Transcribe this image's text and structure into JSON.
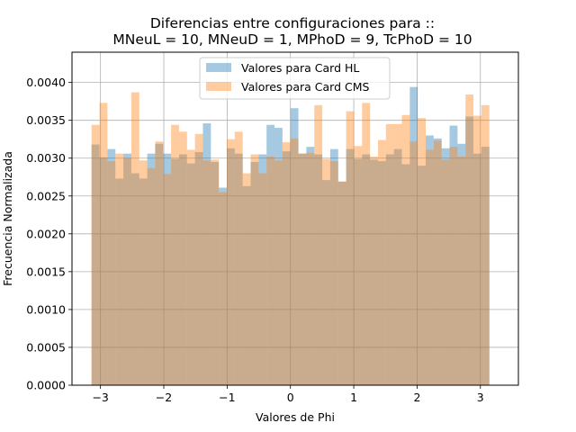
{
  "chart_data": {
    "type": "bar",
    "title_lines": [
      "Diferencias entre configuraciones para ::",
      "MNeuL = 10, MNeuD = 1, MPhoD = 9, TcPhoD = 10"
    ],
    "xlabel": "Valores de Phi",
    "ylabel": "Frecuencia Normalizada",
    "xlim": [
      -3.45,
      3.6
    ],
    "ylim": [
      0,
      0.0044
    ],
    "xticks": [
      -3,
      -2,
      -1,
      0,
      1,
      2,
      3
    ],
    "xtick_labels": [
      "−3",
      "−2",
      "−1",
      "0",
      "1",
      "2",
      "3"
    ],
    "yticks": [
      0,
      0.0005,
      0.001,
      0.0015,
      0.002,
      0.0025,
      0.003,
      0.0035,
      0.004
    ],
    "ytick_labels": [
      "0.0000",
      "0.0005",
      "0.0010",
      "0.0015",
      "0.0020",
      "0.0025",
      "0.0030",
      "0.0035",
      "0.0040"
    ],
    "grid": true,
    "legend_position": "top-center",
    "bin_start": -3.14159,
    "bin_end": 3.14159,
    "num_bins": 50,
    "series": [
      {
        "name": "Valores para Card HL",
        "color": "#1f77b4",
        "alpha": 0.4,
        "values": [
          0.00318,
          0.00301,
          0.00312,
          0.00273,
          0.00306,
          0.0028,
          0.00273,
          0.00306,
          0.00319,
          0.00306,
          0.00299,
          0.00305,
          0.00293,
          0.00308,
          0.00346,
          0.00295,
          0.00261,
          0.00313,
          0.00306,
          0.00263,
          0.00295,
          0.00305,
          0.00344,
          0.0034,
          0.00309,
          0.00366,
          0.00306,
          0.00315,
          0.00305,
          0.00271,
          0.00312,
          0.00269,
          0.00312,
          0.00299,
          0.00305,
          0.00298,
          0.00296,
          0.00305,
          0.00312,
          0.00292,
          0.00394,
          0.0029,
          0.0033,
          0.00326,
          0.00313,
          0.00343,
          0.00319,
          0.00355,
          0.00306,
          0.00315
        ]
      },
      {
        "name": "Valores para Card CMS",
        "color": "#ff7f0e",
        "alpha": 0.4,
        "values": [
          0.00344,
          0.00373,
          0.00296,
          0.00306,
          0.003,
          0.00387,
          0.00297,
          0.00287,
          0.00322,
          0.00279,
          0.00344,
          0.00335,
          0.00311,
          0.00332,
          0.00297,
          0.00298,
          0.00255,
          0.00325,
          0.00335,
          0.0028,
          0.00305,
          0.0028,
          0.00302,
          0.00297,
          0.00321,
          0.00326,
          0.00306,
          0.00307,
          0.0037,
          0.00299,
          0.00296,
          0.00269,
          0.00362,
          0.00316,
          0.00373,
          0.00302,
          0.00324,
          0.00345,
          0.00345,
          0.00357,
          0.00322,
          0.00353,
          0.00311,
          0.00323,
          0.00298,
          0.00315,
          0.00302,
          0.00384,
          0.00356,
          0.0037
        ]
      }
    ]
  }
}
